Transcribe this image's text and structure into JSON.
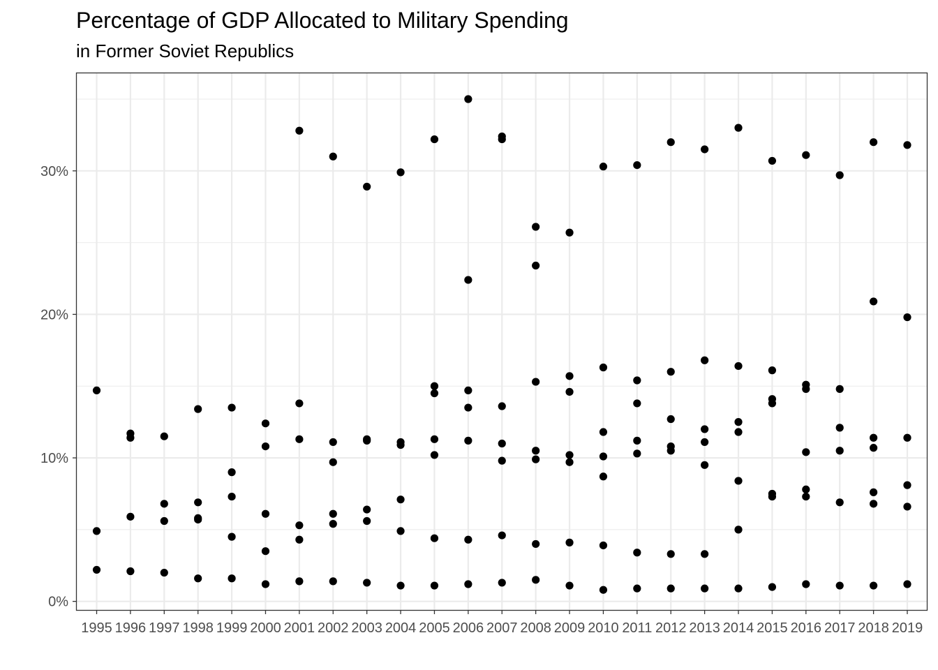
{
  "chart_data": {
    "type": "scatter",
    "title": "Percentage of GDP Allocated to Military Spending",
    "subtitle": "in Former Soviet Republics",
    "xlabel": "",
    "ylabel": "",
    "x_categories": [
      "1995",
      "1996",
      "1997",
      "1998",
      "1999",
      "2000",
      "2001",
      "2002",
      "2003",
      "2004",
      "2005",
      "2006",
      "2007",
      "2008",
      "2009",
      "2010",
      "2011",
      "2012",
      "2013",
      "2014",
      "2015",
      "2016",
      "2017",
      "2018",
      "2019"
    ],
    "y_ticks": [
      0,
      10,
      20,
      30
    ],
    "y_tick_labels": [
      "0%",
      "10%",
      "20%",
      "30%"
    ],
    "ylim": [
      -0.6,
      36.8
    ],
    "grid": true,
    "legend": "none",
    "point_color": "#000000",
    "points": [
      {
        "x": "1995",
        "y": 14.7
      },
      {
        "x": "1995",
        "y": 4.9
      },
      {
        "x": "1995",
        "y": 2.2
      },
      {
        "x": "1996",
        "y": 11.7
      },
      {
        "x": "1996",
        "y": 11.4
      },
      {
        "x": "1996",
        "y": 5.9
      },
      {
        "x": "1996",
        "y": 2.1
      },
      {
        "x": "1997",
        "y": 11.5
      },
      {
        "x": "1997",
        "y": 6.8
      },
      {
        "x": "1997",
        "y": 5.6
      },
      {
        "x": "1997",
        "y": 2.0
      },
      {
        "x": "1998",
        "y": 13.4
      },
      {
        "x": "1998",
        "y": 6.9
      },
      {
        "x": "1998",
        "y": 5.8
      },
      {
        "x": "1998",
        "y": 5.7
      },
      {
        "x": "1998",
        "y": 1.6
      },
      {
        "x": "1999",
        "y": 13.5
      },
      {
        "x": "1999",
        "y": 9.0
      },
      {
        "x": "1999",
        "y": 7.3
      },
      {
        "x": "1999",
        "y": 4.5
      },
      {
        "x": "1999",
        "y": 1.6
      },
      {
        "x": "2000",
        "y": 12.4
      },
      {
        "x": "2000",
        "y": 10.8
      },
      {
        "x": "2000",
        "y": 6.1
      },
      {
        "x": "2000",
        "y": 3.5
      },
      {
        "x": "2000",
        "y": 1.2
      },
      {
        "x": "2001",
        "y": 32.8
      },
      {
        "x": "2001",
        "y": 13.8
      },
      {
        "x": "2001",
        "y": 11.3
      },
      {
        "x": "2001",
        "y": 5.3
      },
      {
        "x": "2001",
        "y": 4.3
      },
      {
        "x": "2001",
        "y": 1.4
      },
      {
        "x": "2002",
        "y": 31.0
      },
      {
        "x": "2002",
        "y": 11.1
      },
      {
        "x": "2002",
        "y": 9.7
      },
      {
        "x": "2002",
        "y": 6.1
      },
      {
        "x": "2002",
        "y": 5.4
      },
      {
        "x": "2002",
        "y": 1.4
      },
      {
        "x": "2003",
        "y": 28.9
      },
      {
        "x": "2003",
        "y": 11.3
      },
      {
        "x": "2003",
        "y": 11.2
      },
      {
        "x": "2003",
        "y": 6.4
      },
      {
        "x": "2003",
        "y": 5.6
      },
      {
        "x": "2003",
        "y": 1.3
      },
      {
        "x": "2004",
        "y": 29.9
      },
      {
        "x": "2004",
        "y": 11.1
      },
      {
        "x": "2004",
        "y": 10.9
      },
      {
        "x": "2004",
        "y": 7.1
      },
      {
        "x": "2004",
        "y": 4.9
      },
      {
        "x": "2004",
        "y": 1.1
      },
      {
        "x": "2005",
        "y": 32.2
      },
      {
        "x": "2005",
        "y": 15.0
      },
      {
        "x": "2005",
        "y": 14.5
      },
      {
        "x": "2005",
        "y": 11.3
      },
      {
        "x": "2005",
        "y": 10.2
      },
      {
        "x": "2005",
        "y": 4.4
      },
      {
        "x": "2005",
        "y": 1.1
      },
      {
        "x": "2006",
        "y": 35.0
      },
      {
        "x": "2006",
        "y": 22.4
      },
      {
        "x": "2006",
        "y": 14.7
      },
      {
        "x": "2006",
        "y": 13.5
      },
      {
        "x": "2006",
        "y": 11.2
      },
      {
        "x": "2006",
        "y": 4.3
      },
      {
        "x": "2006",
        "y": 1.2
      },
      {
        "x": "2007",
        "y": 32.4
      },
      {
        "x": "2007",
        "y": 32.2
      },
      {
        "x": "2007",
        "y": 13.6
      },
      {
        "x": "2007",
        "y": 11.0
      },
      {
        "x": "2007",
        "y": 9.8
      },
      {
        "x": "2007",
        "y": 4.6
      },
      {
        "x": "2007",
        "y": 1.3
      },
      {
        "x": "2008",
        "y": 26.1
      },
      {
        "x": "2008",
        "y": 23.4
      },
      {
        "x": "2008",
        "y": 15.3
      },
      {
        "x": "2008",
        "y": 10.5
      },
      {
        "x": "2008",
        "y": 9.9
      },
      {
        "x": "2008",
        "y": 4.0
      },
      {
        "x": "2008",
        "y": 1.5
      },
      {
        "x": "2009",
        "y": 25.7
      },
      {
        "x": "2009",
        "y": 15.7
      },
      {
        "x": "2009",
        "y": 14.6
      },
      {
        "x": "2009",
        "y": 10.2
      },
      {
        "x": "2009",
        "y": 9.7
      },
      {
        "x": "2009",
        "y": 4.1
      },
      {
        "x": "2009",
        "y": 1.1
      },
      {
        "x": "2010",
        "y": 30.3
      },
      {
        "x": "2010",
        "y": 16.3
      },
      {
        "x": "2010",
        "y": 11.8
      },
      {
        "x": "2010",
        "y": 10.1
      },
      {
        "x": "2010",
        "y": 8.7
      },
      {
        "x": "2010",
        "y": 3.9
      },
      {
        "x": "2010",
        "y": 0.8
      },
      {
        "x": "2011",
        "y": 30.4
      },
      {
        "x": "2011",
        "y": 15.4
      },
      {
        "x": "2011",
        "y": 13.8
      },
      {
        "x": "2011",
        "y": 11.2
      },
      {
        "x": "2011",
        "y": 10.3
      },
      {
        "x": "2011",
        "y": 3.4
      },
      {
        "x": "2011",
        "y": 0.9
      },
      {
        "x": "2012",
        "y": 32.0
      },
      {
        "x": "2012",
        "y": 16.0
      },
      {
        "x": "2012",
        "y": 12.7
      },
      {
        "x": "2012",
        "y": 10.8
      },
      {
        "x": "2012",
        "y": 10.5
      },
      {
        "x": "2012",
        "y": 3.3
      },
      {
        "x": "2012",
        "y": 0.9
      },
      {
        "x": "2013",
        "y": 31.5
      },
      {
        "x": "2013",
        "y": 16.8
      },
      {
        "x": "2013",
        "y": 12.0
      },
      {
        "x": "2013",
        "y": 11.1
      },
      {
        "x": "2013",
        "y": 9.5
      },
      {
        "x": "2013",
        "y": 3.3
      },
      {
        "x": "2013",
        "y": 0.9
      },
      {
        "x": "2014",
        "y": 33.0
      },
      {
        "x": "2014",
        "y": 16.4
      },
      {
        "x": "2014",
        "y": 12.5
      },
      {
        "x": "2014",
        "y": 11.8
      },
      {
        "x": "2014",
        "y": 8.4
      },
      {
        "x": "2014",
        "y": 5.0
      },
      {
        "x": "2014",
        "y": 0.9
      },
      {
        "x": "2015",
        "y": 30.7
      },
      {
        "x": "2015",
        "y": 16.1
      },
      {
        "x": "2015",
        "y": 14.1
      },
      {
        "x": "2015",
        "y": 13.8
      },
      {
        "x": "2015",
        "y": 7.5
      },
      {
        "x": "2015",
        "y": 7.3
      },
      {
        "x": "2015",
        "y": 1.0
      },
      {
        "x": "2016",
        "y": 31.1
      },
      {
        "x": "2016",
        "y": 15.1
      },
      {
        "x": "2016",
        "y": 14.8
      },
      {
        "x": "2016",
        "y": 10.4
      },
      {
        "x": "2016",
        "y": 7.8
      },
      {
        "x": "2016",
        "y": 7.3
      },
      {
        "x": "2016",
        "y": 1.2
      },
      {
        "x": "2017",
        "y": 29.7
      },
      {
        "x": "2017",
        "y": 14.8
      },
      {
        "x": "2017",
        "y": 12.1
      },
      {
        "x": "2017",
        "y": 10.5
      },
      {
        "x": "2017",
        "y": 6.9
      },
      {
        "x": "2017",
        "y": 1.1
      },
      {
        "x": "2018",
        "y": 32.0
      },
      {
        "x": "2018",
        "y": 20.9
      },
      {
        "x": "2018",
        "y": 11.4
      },
      {
        "x": "2018",
        "y": 10.7
      },
      {
        "x": "2018",
        "y": 7.6
      },
      {
        "x": "2018",
        "y": 6.8
      },
      {
        "x": "2018",
        "y": 1.1
      },
      {
        "x": "2019",
        "y": 31.8
      },
      {
        "x": "2019",
        "y": 19.8
      },
      {
        "x": "2019",
        "y": 11.4
      },
      {
        "x": "2019",
        "y": 8.1
      },
      {
        "x": "2019",
        "y": 6.6
      },
      {
        "x": "2019",
        "y": 1.2
      }
    ]
  }
}
